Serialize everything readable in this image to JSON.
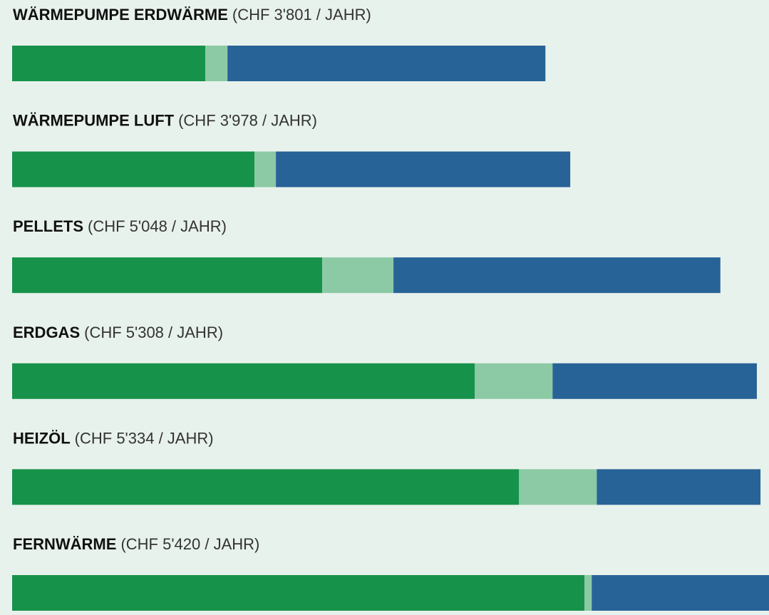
{
  "chart_data": {
    "type": "stacked-bar-horizontal",
    "categories": [
      "WÄRMEPUMPE ERDWÄRME",
      "WÄRMEPUMPE LUFT",
      "PELLETS",
      "ERDGAS",
      "HEIZÖL",
      "FERNWÄRME"
    ],
    "total_labels": [
      "(CHF 3'801 / JAHR)",
      "(CHF 3'978 / JAHR)",
      "(CHF 5'048 / JAHR)",
      "(CHF 5'308 / JAHR)",
      "(CHF 5'334 / JAHR)",
      "(CHF 5'420 / JAHR)"
    ],
    "series": [
      {
        "color": "#17924a",
        "values": [
          1377,
          1728,
          2210,
          3298,
          3613,
          4080
        ]
      },
      {
        "color": "#8ccaa5",
        "values": [
          158,
          152,
          508,
          554,
          554,
          51
        ]
      },
      {
        "color": "#286397",
        "values": [
          2266,
          2098,
          2330,
          1456,
          1167,
          1289
        ]
      }
    ]
  }
}
